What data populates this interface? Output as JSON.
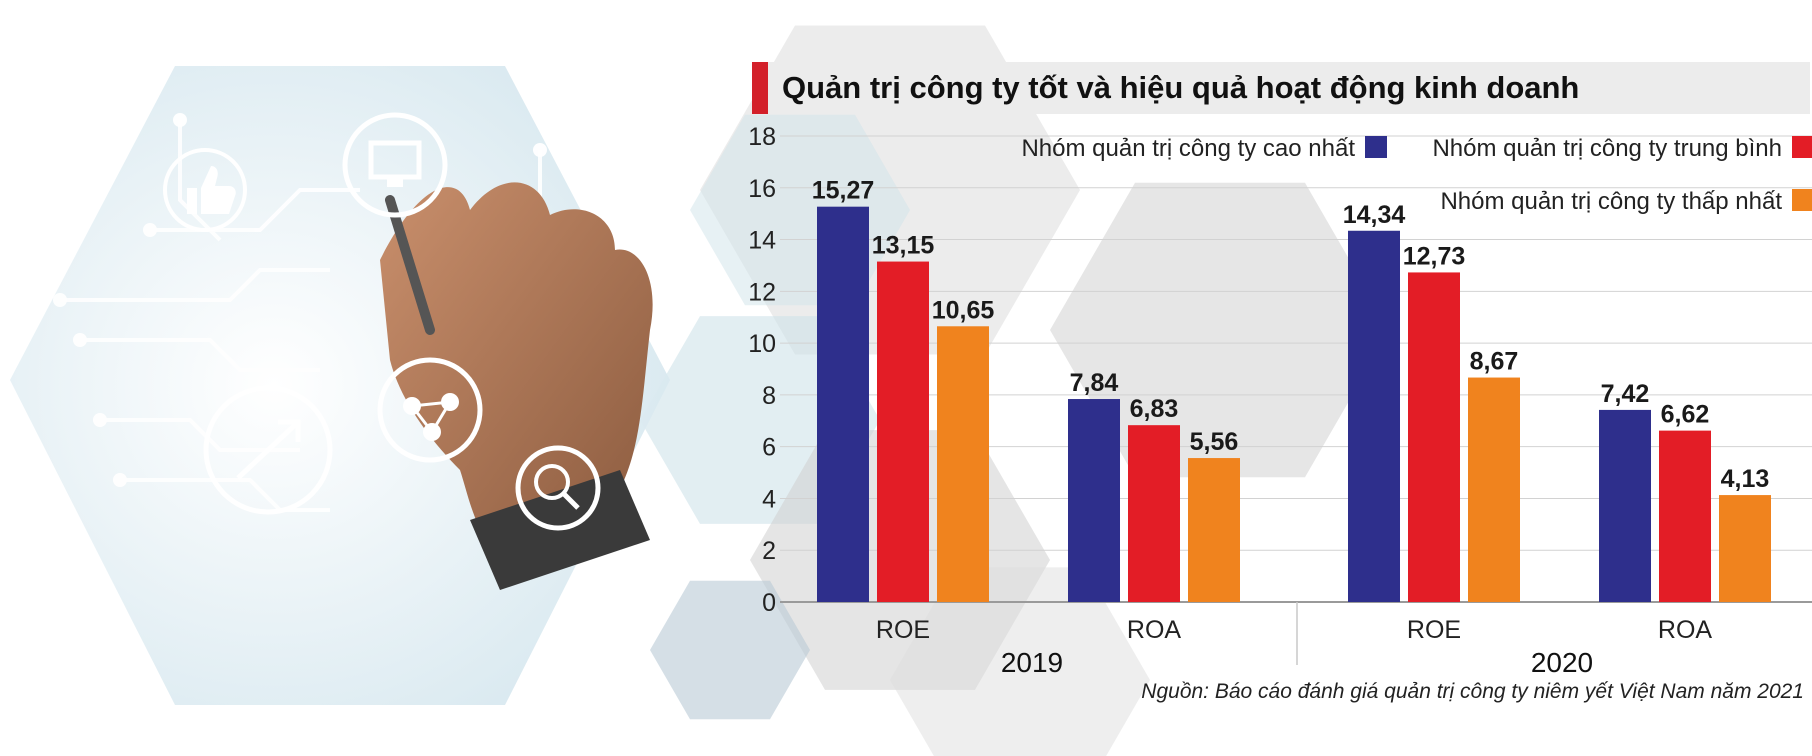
{
  "title": "Quản trị công ty tốt và hiệu quả hoạt động kinh doanh",
  "source": "Nguồn: Báo cáo đánh giá quản trị công ty niêm yết Việt Nam năm 2021",
  "illustration": {
    "icons": [
      "thumbs-up-icon",
      "monitor-icon",
      "growth-arrow-icon",
      "network-nodes-icon",
      "magnifier-icon"
    ]
  },
  "chart_data": {
    "type": "bar",
    "groups": [
      {
        "name": "2019",
        "categories": [
          "ROE",
          "ROA"
        ]
      },
      {
        "name": "2020",
        "categories": [
          "ROE",
          "ROA"
        ]
      }
    ],
    "categories": [
      "ROE",
      "ROA",
      "ROE",
      "ROA"
    ],
    "series": [
      {
        "name": "Nhóm quản trị công ty cao nhất",
        "color": "#2e2f8c",
        "values": [
          15.27,
          7.84,
          14.34,
          7.42
        ],
        "labels": [
          "15,27",
          "7,84",
          "14,34",
          "7,42"
        ]
      },
      {
        "name": "Nhóm quản trị công ty trung bình",
        "color": "#e31d26",
        "values": [
          13.15,
          6.83,
          12.73,
          6.62
        ],
        "labels": [
          "13,15",
          "6,83",
          "12,73",
          "6,62"
        ]
      },
      {
        "name": "Nhóm quản trị công ty thấp nhất",
        "color": "#f0831e",
        "values": [
          10.65,
          5.56,
          8.67,
          4.13
        ],
        "labels": [
          "10,65",
          "5,56",
          "8,67",
          "4,13"
        ]
      }
    ],
    "yticks": [
      0,
      2,
      4,
      6,
      8,
      10,
      12,
      14,
      16,
      18
    ],
    "ylim": [
      0,
      18
    ],
    "grid": true,
    "legend": "top-right",
    "xlabel": "",
    "ylabel": ""
  }
}
